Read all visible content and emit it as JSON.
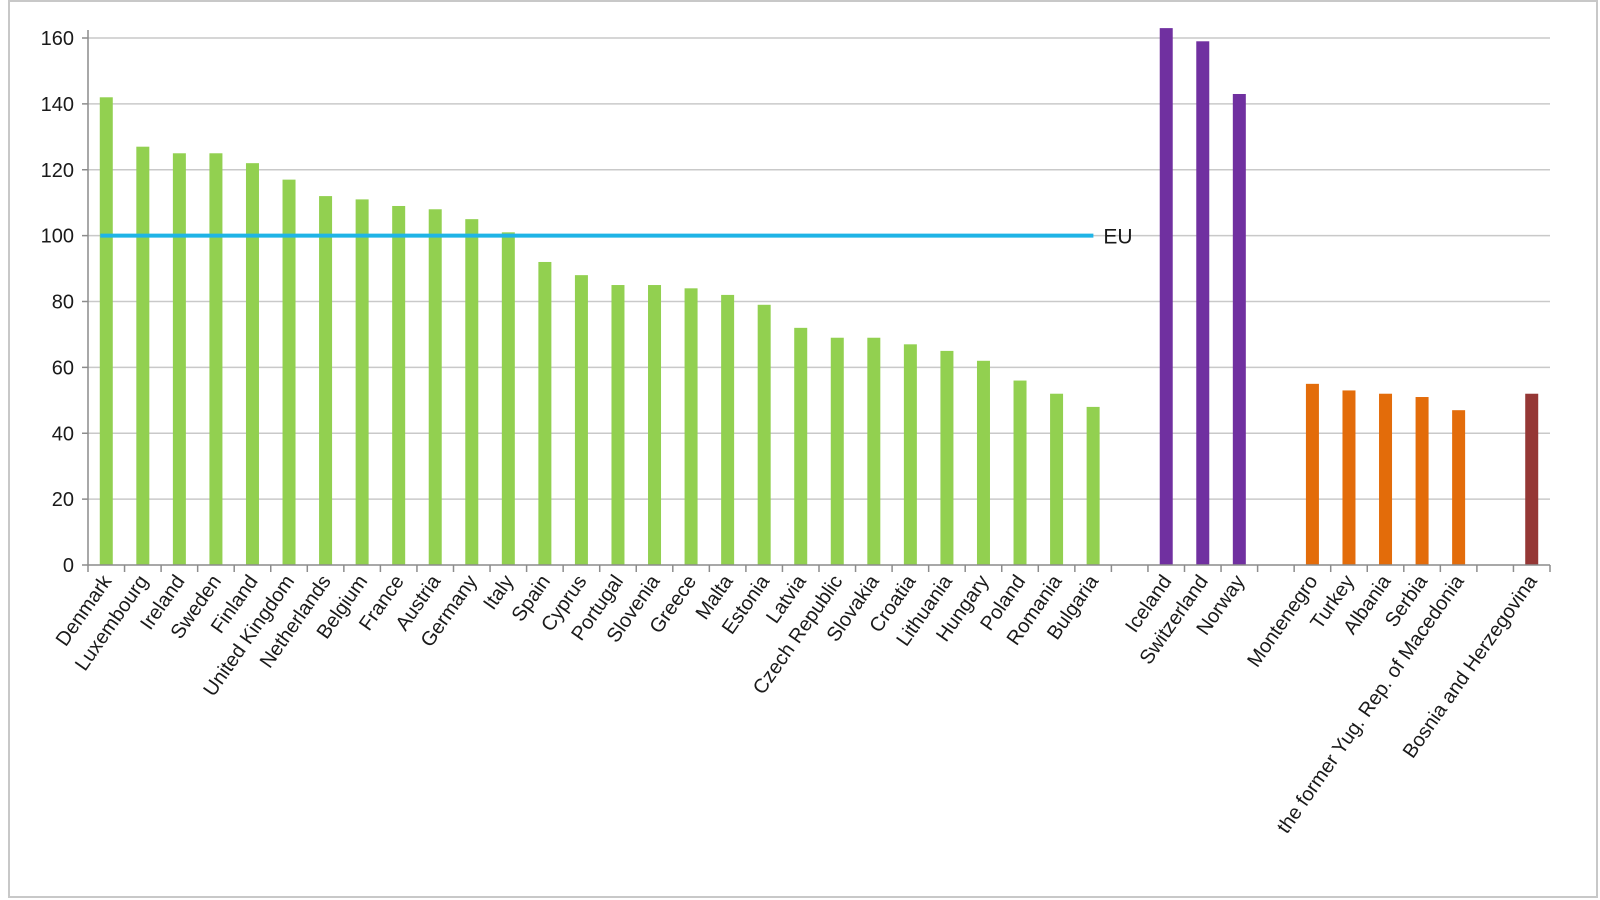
{
  "chart_data": {
    "type": "bar",
    "title": "",
    "xlabel": "",
    "ylabel": "",
    "ylim": [
      0,
      160
    ],
    "yticks": [
      0,
      20,
      40,
      60,
      80,
      100,
      120,
      140,
      160
    ],
    "grid": "horizontal",
    "reference_line": {
      "value": 100,
      "label": "EU",
      "color": "#1fb4e6"
    },
    "groups": [
      {
        "color": "#92d050",
        "categories": [
          "Denmark",
          "Luxembourg",
          "Ireland",
          "Sweden",
          "Finland",
          "United Kingdom",
          "Netherlands",
          "Belgium",
          "France",
          "Austria",
          "Germany",
          "Italy",
          "Spain",
          "Cyprus",
          "Portugal",
          "Slovenia",
          "Greece",
          "Malta",
          "Estonia",
          "Latvia",
          "Czech Republic",
          "Slovakia",
          "Croatia",
          "Lithuania",
          "Hungary",
          "Poland",
          "Romania",
          "Bulgaria"
        ],
        "values": [
          142,
          127,
          125,
          125,
          122,
          117,
          112,
          111,
          109,
          108,
          105,
          101,
          92,
          88,
          85,
          85,
          84,
          82,
          79,
          72,
          69,
          69,
          67,
          65,
          62,
          56,
          52,
          48
        ]
      },
      {
        "color": "#7030a0",
        "categories": [
          "Iceland",
          "Switzerland",
          "Norway"
        ],
        "values": [
          163,
          159,
          143
        ]
      },
      {
        "color": "#e36c0a",
        "categories": [
          "Montenegro",
          "Turkey",
          "Albania",
          "Serbia",
          "the former Yug. Rep. of Macedonia"
        ],
        "values": [
          55,
          53,
          52,
          51,
          47
        ]
      },
      {
        "color": "#953735",
        "categories": [
          "Bosnia and Herzegovina"
        ],
        "values": [
          52
        ]
      }
    ]
  }
}
